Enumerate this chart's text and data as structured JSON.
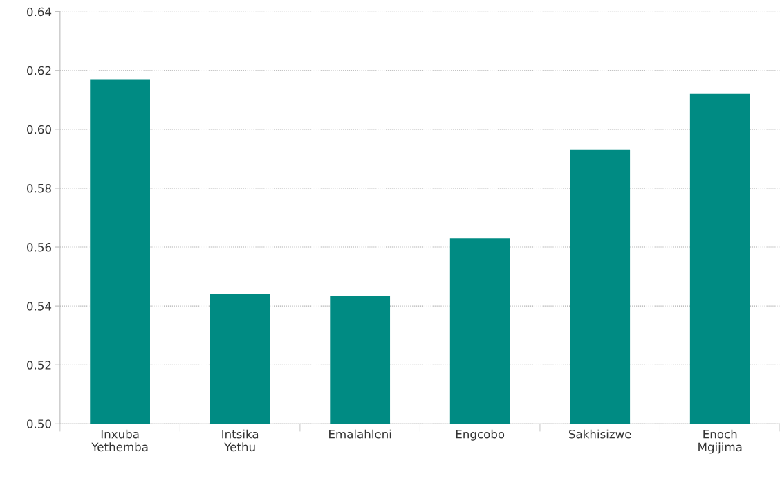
{
  "chart_data": {
    "type": "bar",
    "categories": [
      "Inxuba\nYethemba",
      "Intsika\nYethu",
      "Emalahleni",
      "Engcobo",
      "Sakhisizwe",
      "Enoch\nMgijima"
    ],
    "values": [
      0.617,
      0.544,
      0.5435,
      0.563,
      0.593,
      0.612
    ],
    "color": "#008b83",
    "ylim": [
      0.5,
      0.64
    ],
    "yticks": [
      {
        "value": 0.5,
        "label": "0.50"
      },
      {
        "value": 0.52,
        "label": "0.52"
      },
      {
        "value": 0.54,
        "label": "0.54"
      },
      {
        "value": 0.56,
        "label": "0.56"
      },
      {
        "value": 0.58,
        "label": "0.58"
      },
      {
        "value": 0.6,
        "label": "0.60"
      },
      {
        "value": 0.62,
        "label": "0.62"
      },
      {
        "value": 0.64,
        "label": "0.64"
      }
    ],
    "grid": "y",
    "legend": false
  }
}
